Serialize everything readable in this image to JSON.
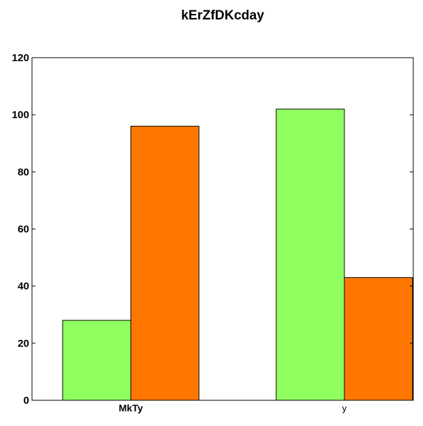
{
  "chart_data": {
    "type": "bar",
    "title": "kErZfDKcday",
    "xlabel": "",
    "ylabel": "",
    "categories": [
      "MkTy",
      "y"
    ],
    "series": [
      {
        "values": [
          28,
          102
        ],
        "color": "#90ff60"
      },
      {
        "values": [
          96,
          43
        ],
        "color": "#ff7700"
      }
    ],
    "ylim": [
      0,
      120
    ],
    "yticks": [
      "0",
      "20",
      "40",
      "60",
      "80",
      "100",
      "120"
    ],
    "grid": false,
    "legend": "none"
  }
}
